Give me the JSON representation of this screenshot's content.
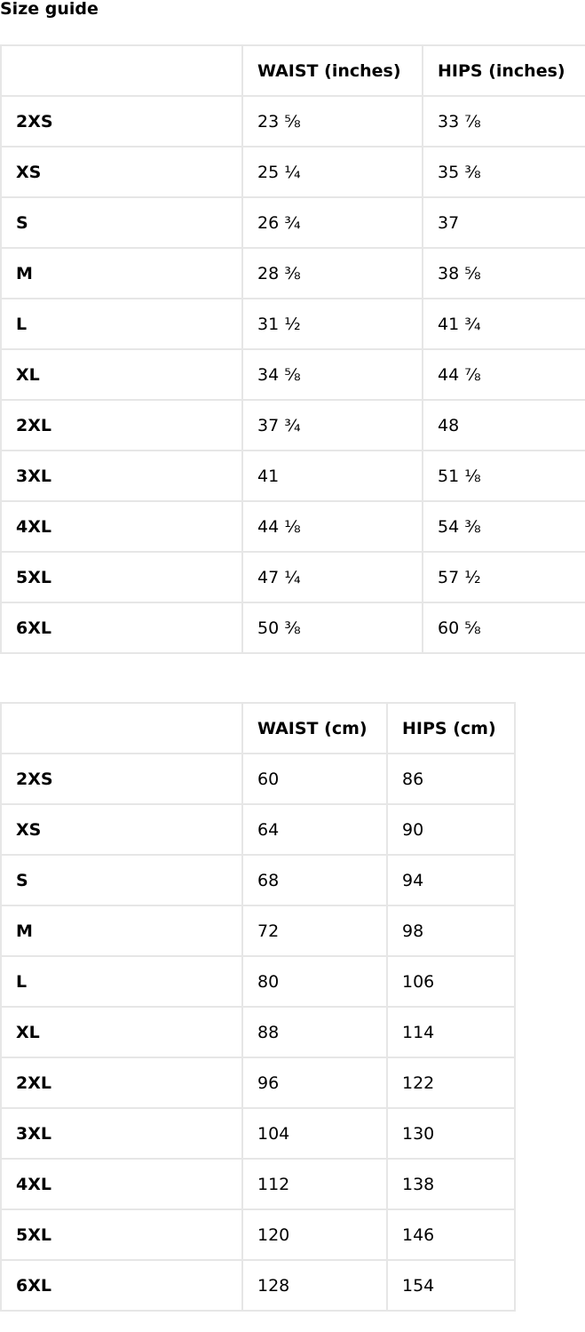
{
  "title": "Size guide",
  "inches_table": {
    "headers": [
      "",
      "WAIST (inches)",
      "HIPS (inches)"
    ],
    "rows": [
      [
        "2XS",
        "23 ⅝",
        "33 ⅞"
      ],
      [
        "XS",
        "25 ¼",
        "35 ⅜"
      ],
      [
        "S",
        "26 ¾",
        "37"
      ],
      [
        "M",
        "28 ⅜",
        "38 ⅝"
      ],
      [
        "L",
        "31 ½",
        "41 ¾"
      ],
      [
        "XL",
        "34 ⅝",
        "44 ⅞"
      ],
      [
        "2XL",
        "37 ¾",
        "48"
      ],
      [
        "3XL",
        "41",
        "51 ⅛"
      ],
      [
        "4XL",
        "44 ⅛",
        "54 ⅜"
      ],
      [
        "5XL",
        "47 ¼",
        "57 ½"
      ],
      [
        "6XL",
        "50 ⅜",
        "60 ⅝"
      ]
    ]
  },
  "cm_table": {
    "headers": [
      "",
      "WAIST (cm)",
      "HIPS (cm)"
    ],
    "rows": [
      [
        "2XS",
        "60",
        "86"
      ],
      [
        "XS",
        "64",
        "90"
      ],
      [
        "S",
        "68",
        "94"
      ],
      [
        "M",
        "72",
        "98"
      ],
      [
        "L",
        "80",
        "106"
      ],
      [
        "XL",
        "88",
        "114"
      ],
      [
        "2XL",
        "96",
        "122"
      ],
      [
        "3XL",
        "104",
        "130"
      ],
      [
        "4XL",
        "112",
        "138"
      ],
      [
        "5XL",
        "120",
        "146"
      ],
      [
        "6XL",
        "128",
        "154"
      ]
    ]
  }
}
